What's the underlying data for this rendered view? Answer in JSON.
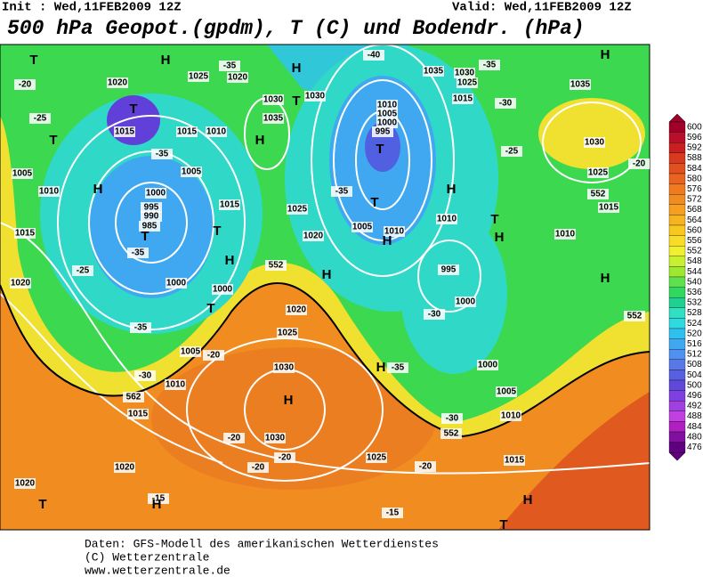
{
  "header": {
    "init": "Init : Wed,11FEB2009 12Z",
    "valid": "Valid: Wed,11FEB2009 12Z",
    "title": "500 hPa Geopot.(gpdm), T (C) und Bodendr. (hPa)"
  },
  "colorbar": {
    "levels": [
      "600",
      "596",
      "592",
      "588",
      "584",
      "580",
      "576",
      "572",
      "568",
      "564",
      "560",
      "556",
      "552",
      "548",
      "544",
      "540",
      "536",
      "532",
      "528",
      "524",
      "520",
      "516",
      "512",
      "508",
      "504",
      "500",
      "496",
      "492",
      "488",
      "484",
      "480",
      "476"
    ],
    "colors": [
      "#a0002a",
      "#b8102a",
      "#c82020",
      "#d83a20",
      "#e05020",
      "#e86420",
      "#f07a20",
      "#f08c20",
      "#f5a020",
      "#f8b420",
      "#f8c820",
      "#f8dc28",
      "#f0f030",
      "#c8f030",
      "#a0e830",
      "#60e050",
      "#30d860",
      "#20d090",
      "#30e0c0",
      "#30d8e0",
      "#30c0f0",
      "#40a8f0",
      "#5090f0",
      "#5878e8",
      "#5860e0",
      "#6048d8",
      "#8040e0",
      "#a040e0",
      "#c040e0",
      "#b020c0",
      "#8010a0",
      "#600080"
    ]
  },
  "map_labels": [
    "T",
    "H",
    "1020",
    "1025",
    "1020",
    "-35",
    "H",
    "-40",
    "1035",
    "1030",
    "-35",
    "H",
    "-20",
    "1025",
    "1015",
    "1035",
    "1030",
    "1030",
    "-25",
    "T",
    "1015",
    "1015",
    "1010",
    "1035",
    "H",
    "1010",
    "1005",
    "1000",
    "995",
    "T",
    "-30",
    "-25",
    "1030",
    "1025",
    "-20",
    "T",
    "-35",
    "1005",
    "1005",
    "H",
    "1010",
    "1000",
    "995",
    "990",
    "985",
    "T",
    "-35",
    "1015",
    "1025",
    "T",
    "-35",
    "T",
    "H",
    "1010",
    "T",
    "1005",
    "1010",
    "H",
    "1020",
    "H",
    "1010",
    "1015",
    "1015",
    "H",
    "1000",
    "-25",
    "1020",
    "H",
    "995",
    "H",
    "1000",
    "T",
    "1000",
    "-30",
    "1020",
    "-35",
    "1025",
    "1005",
    "-20",
    "H",
    "-35",
    "1000",
    "1030",
    "-30",
    "1010",
    "1005",
    "H",
    "1015",
    "-30",
    "1010",
    "1030",
    "-20",
    "-20",
    "1025",
    "1020",
    "-20",
    "-20",
    "1015",
    "1020",
    "-15",
    "T",
    "H",
    "-15",
    "H",
    "T",
    "552",
    "562",
    "552",
    "552",
    "552",
    "T"
  ],
  "footer": [
    "Daten: GFS-Modell des amerikanischen Wetterdienstes",
    "(C) Wetterzentrale",
    "www.wetterzentrale.de"
  ]
}
